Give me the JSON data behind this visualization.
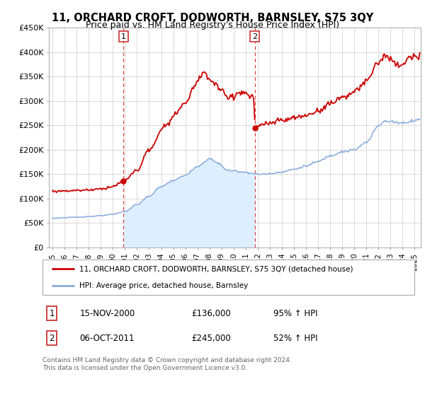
{
  "title": "11, ORCHARD CROFT, DODWORTH, BARNSLEY, S75 3QY",
  "subtitle": "Price paid vs. HM Land Registry's House Price Index (HPI)",
  "title_fontsize": 10.5,
  "subtitle_fontsize": 9,
  "xmin": 1994.7,
  "xmax": 2025.5,
  "ymin": 0,
  "ymax": 450000,
  "yticks": [
    0,
    50000,
    100000,
    150000,
    200000,
    250000,
    300000,
    350000,
    400000,
    450000
  ],
  "ytick_labels": [
    "£0",
    "£50K",
    "£100K",
    "£150K",
    "£200K",
    "£250K",
    "£300K",
    "£350K",
    "£400K",
    "£450K"
  ],
  "purchase1_date_num": 2000.88,
  "purchase1_price": 136000,
  "purchase1_date_str": "15-NOV-2000",
  "purchase1_hpi_pct": "95%",
  "purchase2_date_num": 2011.75,
  "purchase2_price": 245000,
  "purchase2_date_str": "06-OCT-2011",
  "purchase2_hpi_pct": "52%",
  "legend_line1": "11, ORCHARD CROFT, DODWORTH, BARNSLEY, S75 3QY (detached house)",
  "legend_line2": "HPI: Average price, detached house, Barnsley",
  "footer1": "Contains HM Land Registry data © Crown copyright and database right 2024.",
  "footer2": "This data is licensed under the Open Government Licence v3.0.",
  "property_line_color": "#cc0000",
  "hpi_line_color": "#88aadd",
  "vline_color": "#dd4444",
  "bg_fill_color": "#ddeeff",
  "grid_color": "#cccccc",
  "box_edge_color": "#cc3333"
}
